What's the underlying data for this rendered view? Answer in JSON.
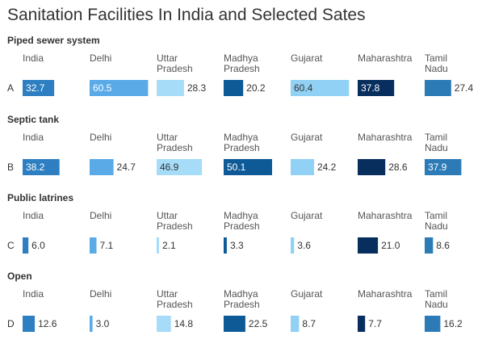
{
  "title": "Sanitation Facilities In India and Selected Sates",
  "states": [
    {
      "label": "India",
      "color": "#2e7fc1"
    },
    {
      "label": "Delhi",
      "color": "#5aaae8"
    },
    {
      "label": "Uttar Pradesh",
      "color": "#a6dcf8"
    },
    {
      "label": "Madhya Pradesh",
      "color": "#0e5a96"
    },
    {
      "label": "Gujarat",
      "color": "#90d1f5"
    },
    {
      "label": "Maharashtra",
      "color": "#082e5e"
    },
    {
      "label": "Tamil Nadu",
      "color": "#2c7bb6"
    }
  ],
  "chart_data": {
    "type": "bar",
    "categories": [
      "India",
      "Delhi",
      "Uttar Pradesh",
      "Madhya Pradesh",
      "Gujarat",
      "Maharashtra",
      "Tamil Nadu"
    ],
    "xlim": [
      0,
      61
    ],
    "panels": [
      {
        "title": "Piped sewer system",
        "row_label": "A",
        "values": [
          32.7,
          60.5,
          28.3,
          20.2,
          60.4,
          37.8,
          27.4
        ],
        "value_labels": [
          "32.7",
          "60.5",
          "28.3",
          "20.2",
          "60.4",
          "37.8",
          "27.4"
        ]
      },
      {
        "title": "Septic tank",
        "row_label": "B",
        "values": [
          38.2,
          24.7,
          46.9,
          50.1,
          24.2,
          28.6,
          37.9
        ],
        "value_labels": [
          "38.2",
          "24.7",
          "46.9",
          "50.1",
          "24.2",
          "28.6",
          "37.9"
        ]
      },
      {
        "title": "Public latrines",
        "row_label": "C",
        "values": [
          6.0,
          7.1,
          2.1,
          3.3,
          3.6,
          21.0,
          8.6
        ],
        "value_labels": [
          "6.0",
          "7.1",
          "2.1",
          "3.3",
          "3.6",
          "21.0",
          "8.6"
        ]
      },
      {
        "title": "Open",
        "row_label": "D",
        "values": [
          12.6,
          3.0,
          14.8,
          22.5,
          8.7,
          7.7,
          16.2
        ],
        "value_labels": [
          "12.6",
          "3.0",
          "14.8",
          "22.5",
          "8.7",
          "7.7",
          "16.2"
        ]
      }
    ]
  }
}
